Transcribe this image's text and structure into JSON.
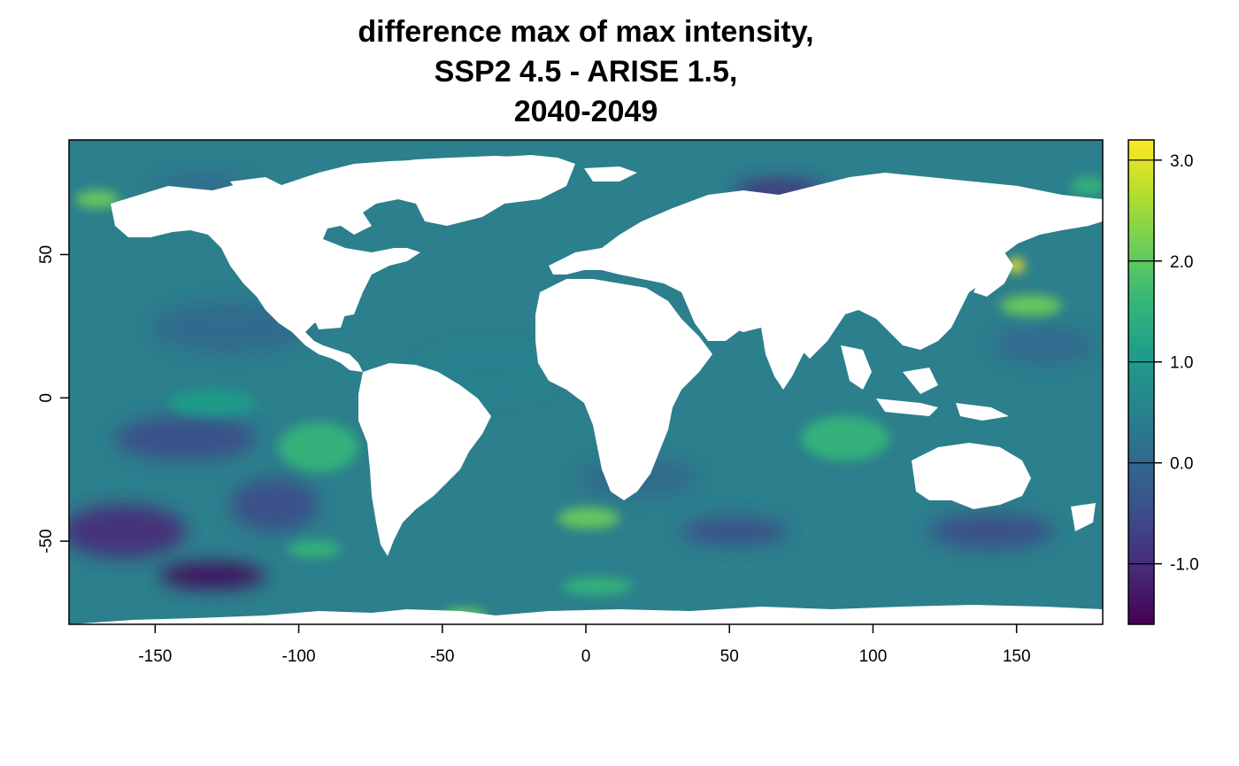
{
  "title_lines": [
    "difference max of max intensity,",
    "SSP2 4.5 - ARISE 1.5,",
    "2040-2049"
  ],
  "map": {
    "variable": "difference max of max intensity",
    "x_range": [
      -180,
      180
    ],
    "y_range": [
      -79,
      90
    ],
    "land_color": "#ffffff",
    "palette": "viridis",
    "x_ticks": [
      -150,
      -100,
      -50,
      0,
      50,
      100,
      150
    ],
    "x_tick_labels": [
      "-150",
      "-100",
      "-50",
      "0",
      "50",
      "100",
      "150"
    ],
    "y_ticks": [
      50,
      0,
      -50
    ],
    "y_tick_labels": [
      "50",
      "0",
      "-50"
    ]
  },
  "legend": {
    "range": [
      -1.6,
      3.2
    ],
    "ticks": [
      3.0,
      2.0,
      1.0,
      0.0,
      -1.0
    ],
    "tick_labels": [
      "3.0",
      "2.0",
      "1.0",
      "0.0",
      "-1.0"
    ],
    "colors": [
      "#440154",
      "#482878",
      "#3e4a89",
      "#31688e",
      "#26828e",
      "#1f9e89",
      "#35b779",
      "#6ece58",
      "#b5de2b",
      "#fde725"
    ]
  }
}
